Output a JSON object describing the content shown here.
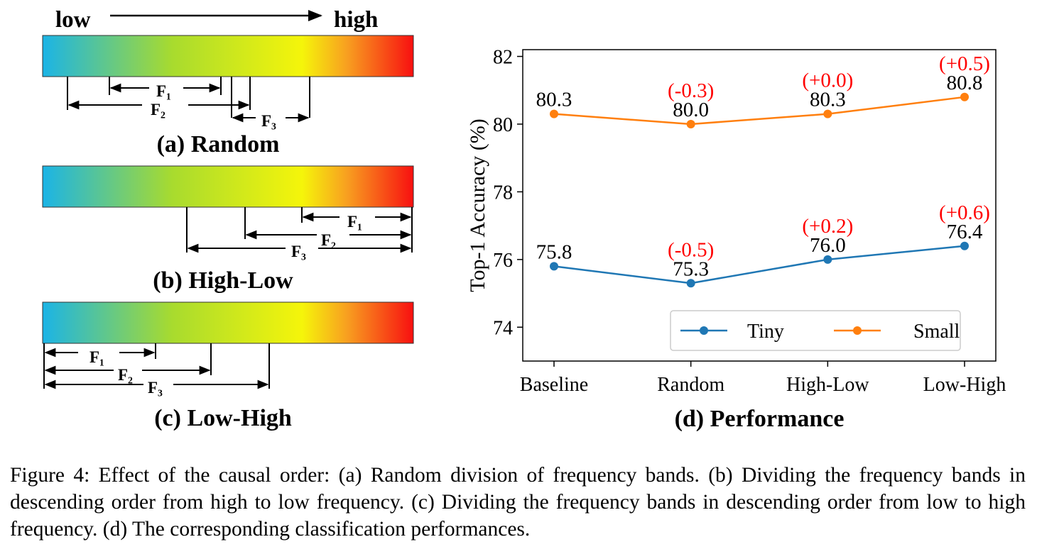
{
  "diagram": {
    "scale_low": "low",
    "scale_high": "high",
    "panels": [
      {
        "caption": "(a) Random",
        "bands": [
          "F₁",
          "F₂",
          "F₃"
        ]
      },
      {
        "caption": "(b) High-Low",
        "bands": [
          "F₁",
          "F₂",
          "F₃"
        ]
      },
      {
        "caption": "(c) Low-High",
        "bands": [
          "F₁",
          "F₂",
          "F₃"
        ]
      }
    ],
    "gradient_colors": [
      "#1bb4e6",
      "#a8db2e",
      "#f5f50a",
      "#f8a020",
      "#f81010"
    ]
  },
  "chart_data": {
    "type": "line",
    "title": "(d) Performance",
    "ylabel": "Top-1 Accuracy (%)",
    "xlabel": "",
    "categories": [
      "Baseline",
      "Random",
      "High-Low",
      "Low-High"
    ],
    "ylim": [
      73,
      82.2
    ],
    "yticks": [
      74,
      76,
      78,
      80,
      82
    ],
    "legend_position": "lower-right",
    "series": [
      {
        "name": "Tiny",
        "color": "#1f77b4",
        "values": [
          75.8,
          75.3,
          76.0,
          76.4
        ],
        "value_labels": [
          "75.8",
          "75.3",
          "76.0",
          "76.4"
        ],
        "delta_labels": [
          "",
          "(-0.5)",
          "(+0.2)",
          "(+0.6)"
        ]
      },
      {
        "name": "Small",
        "color": "#ff7f0e",
        "values": [
          80.3,
          80.0,
          80.3,
          80.8
        ],
        "value_labels": [
          "80.3",
          "80.0",
          "80.3",
          "80.8"
        ],
        "delta_labels": [
          "",
          "(-0.3)",
          "(+0.0)",
          "(+0.5)"
        ]
      }
    ],
    "delta_color": "#ff0000"
  },
  "caption": "Figure 4: Effect of the causal order: (a) Random division of frequency bands. (b) Dividing the frequency bands in descending order from high to low frequency. (c) Dividing the frequency bands in descending order from low to high frequency. (d) The corresponding classification performances."
}
